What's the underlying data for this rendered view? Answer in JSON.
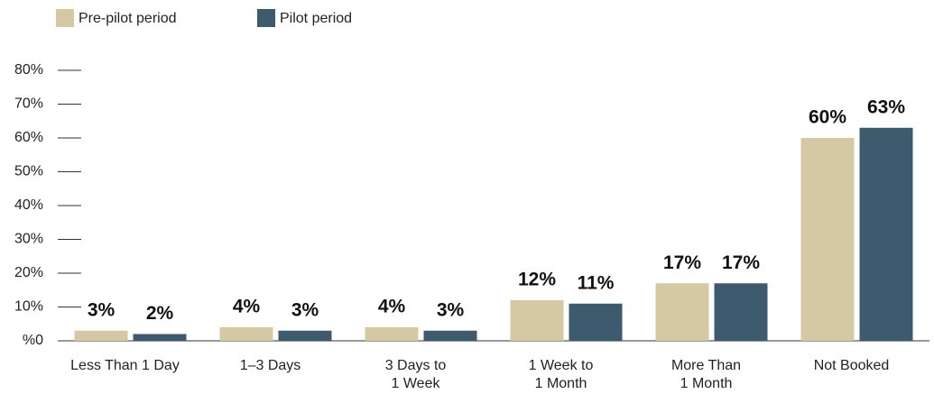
{
  "chart_data": {
    "type": "bar",
    "categories": [
      "Less Than 1 Day",
      "1–3 Days",
      "3 Days to\n1 Week",
      "1 Week to\n1 Month",
      "More Than\n1 Month",
      "Not Booked"
    ],
    "series": [
      {
        "name": "Pre-pilot period",
        "color": "#d4c9a3",
        "values": [
          3,
          4,
          4,
          12,
          17,
          60
        ],
        "value_labels": [
          "3%",
          "4%",
          "4%",
          "12%",
          "17%",
          "60%"
        ]
      },
      {
        "name": "Pilot period",
        "color": "#3d5a6e",
        "values": [
          2,
          3,
          3,
          11,
          17,
          63
        ],
        "value_labels": [
          "2%",
          "3%",
          "3%",
          "11%",
          "17%",
          "63%"
        ]
      }
    ],
    "ylim": [
      0,
      80
    ],
    "yticks": [
      {
        "value": 0,
        "label": "%0"
      },
      {
        "value": 10,
        "label": "10%"
      },
      {
        "value": 20,
        "label": "20%"
      },
      {
        "value": 30,
        "label": "30%"
      },
      {
        "value": 40,
        "label": "40%"
      },
      {
        "value": 50,
        "label": "50%"
      },
      {
        "value": 60,
        "label": "60%"
      },
      {
        "value": 70,
        "label": "70%"
      },
      {
        "value": 80,
        "label": "80%"
      }
    ],
    "legend": "top-left"
  }
}
